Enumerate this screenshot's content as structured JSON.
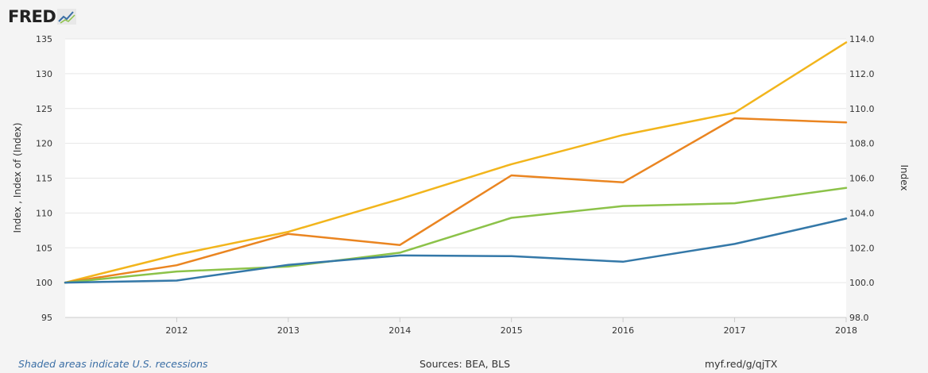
{
  "brand": {
    "name": "FRED",
    "icon": "fred-trend-graph-icon"
  },
  "footer": {
    "recession_note": "Shaded areas indicate U.S. recessions",
    "sources": "Sources: BEA, BLS",
    "short_link": "myf.red/g/qjTX"
  },
  "chart_data": {
    "type": "line",
    "x": [
      "2011",
      "2012",
      "2013",
      "2014",
      "2015",
      "2016",
      "2017",
      "2018"
    ],
    "x_tick_labels": [
      "2012",
      "2013",
      "2014",
      "2015",
      "2016",
      "2017",
      "2018"
    ],
    "ylabel_left": "Index , Index of (Index)",
    "ylabel_right": "Index",
    "ylim_left": [
      95,
      135
    ],
    "yticks_left": [
      "95",
      "100",
      "105",
      "110",
      "115",
      "120",
      "125",
      "130",
      "135"
    ],
    "ylim_right": [
      98.0,
      114.0
    ],
    "yticks_right": [
      "98.0",
      "100.0",
      "102.0",
      "104.0",
      "106.0",
      "108.0",
      "110.0",
      "112.0",
      "114.0"
    ],
    "grid": true,
    "series": [
      {
        "color": "#f2b51c",
        "axis": "left",
        "values": [
          100,
          104,
          107.3,
          112,
          117,
          121.2,
          124.4,
          134.5
        ]
      },
      {
        "color": "#ea8521",
        "axis": "left",
        "values": [
          100,
          102.5,
          107,
          105.4,
          115.4,
          114.4,
          123.6,
          123
        ]
      },
      {
        "color": "#8cc249",
        "axis": "left",
        "values": [
          100,
          101.6,
          102.3,
          104.3,
          109.3,
          111,
          111.4,
          113.6
        ]
      },
      {
        "color": "#3478a8",
        "axis": "right",
        "values": [
          100,
          100.12,
          101.02,
          101.56,
          101.52,
          101.2,
          102.22,
          103.68
        ]
      }
    ]
  }
}
